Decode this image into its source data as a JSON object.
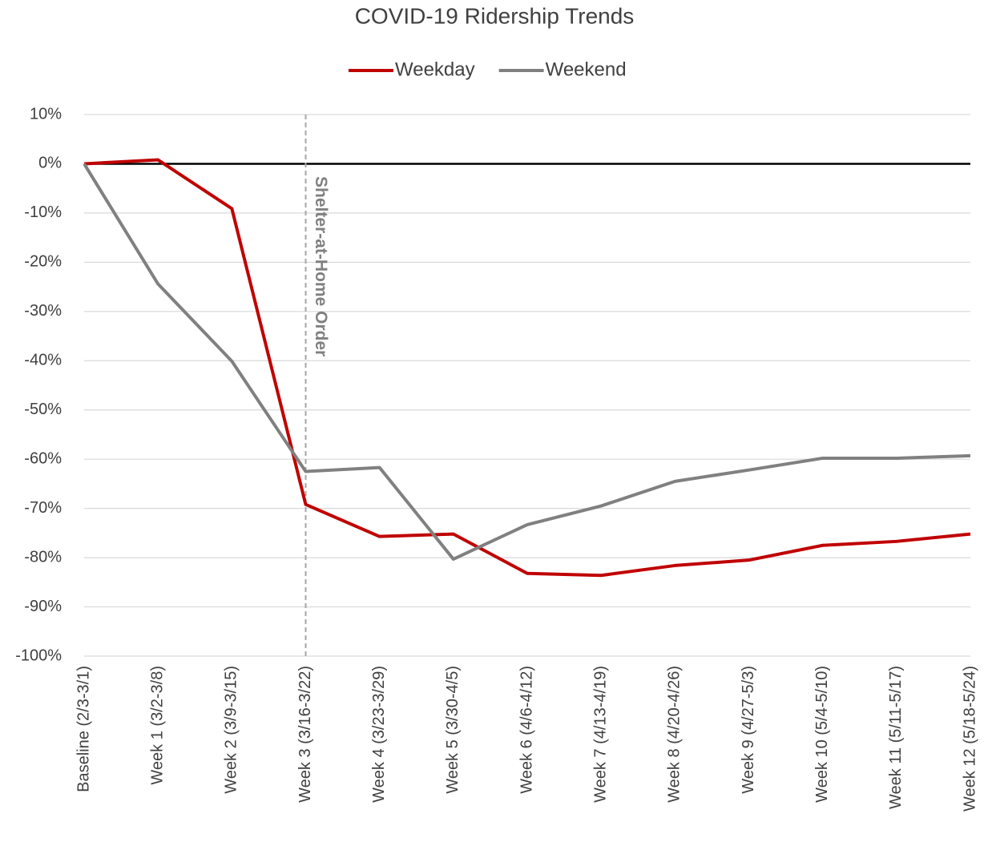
{
  "chart_data": {
    "type": "line",
    "title": "COVID-19 Ridership Trends",
    "categories": [
      "Baseline (2/3-3/1)",
      "Week 1 (3/2-3/8)",
      "Week 2 (3/9-3/15)",
      "Week 3 (3/16-3/22)",
      "Week 4 (3/23-3/29)",
      "Week 5 (3/30-4/5)",
      "Week 6 (4/6-4/12)",
      "Week 7 (4/13-4/19)",
      "Week 8 (4/20-4/26)",
      "Week 9 (4/27-5/3)",
      "Week 10 (5/4-5/10)",
      "Week 11 (5/11-5/17)",
      "Week 12 (5/18-5/24)"
    ],
    "series": [
      {
        "name": "Weekday",
        "color": "#c00000",
        "values": [
          0,
          0.8,
          -9.1,
          -69.2,
          -75.7,
          -75.2,
          -83.2,
          -83.6,
          -81.6,
          -80.5,
          -77.5,
          -76.7,
          -75.2
        ]
      },
      {
        "name": "Weekend",
        "color": "#808080",
        "values": [
          0,
          -24.4,
          -40.1,
          -62.5,
          -61.7,
          -80.3,
          -73.3,
          -69.5,
          -64.5,
          -62.2,
          -59.8,
          -59.8,
          -59.3
        ]
      }
    ],
    "ylim": [
      -100,
      10
    ],
    "yticks": [
      {
        "value": 10,
        "label": "10%"
      },
      {
        "value": 0,
        "label": "0%"
      },
      {
        "value": -10,
        "label": "-10%"
      },
      {
        "value": -20,
        "label": "-20%"
      },
      {
        "value": -30,
        "label": "-30%"
      },
      {
        "value": -40,
        "label": "-40%"
      },
      {
        "value": -50,
        "label": "-50%"
      },
      {
        "value": -60,
        "label": "-60%"
      },
      {
        "value": -70,
        "label": "-70%"
      },
      {
        "value": -80,
        "label": "-80%"
      },
      {
        "value": -90,
        "label": "-90%"
      },
      {
        "value": -100,
        "label": "-100%"
      }
    ],
    "grid": true,
    "legend": "top",
    "annotation": {
      "text": "Shelter-at-Home Order",
      "at": "Week 3 (3/16-3/22)"
    }
  }
}
